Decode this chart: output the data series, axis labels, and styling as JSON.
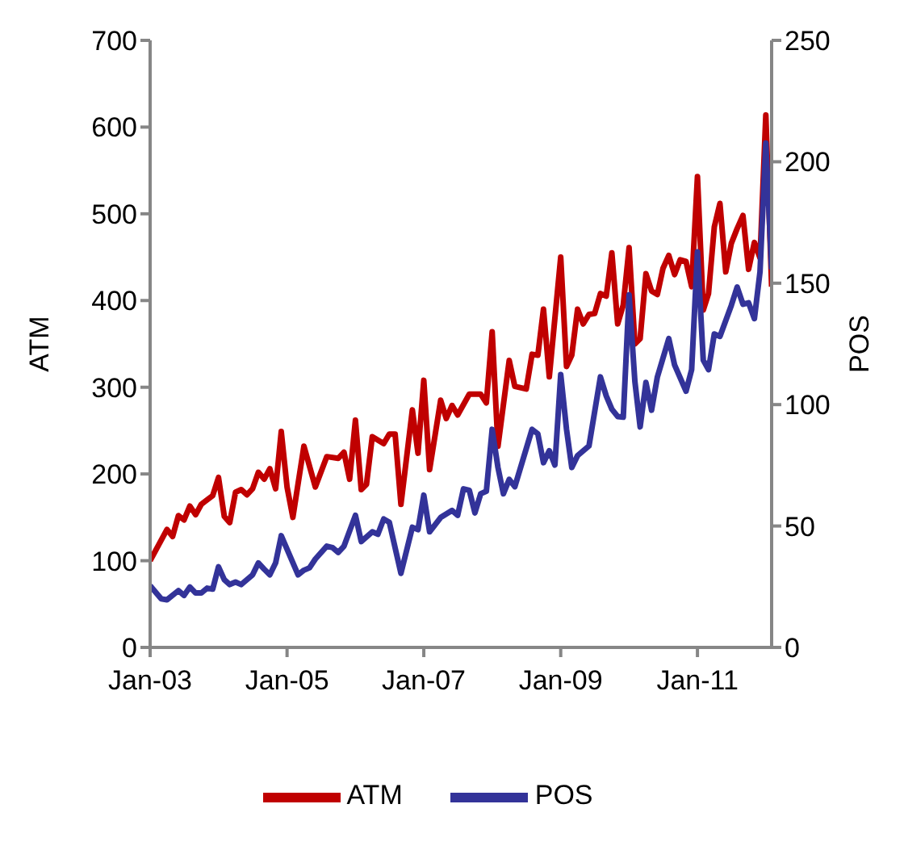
{
  "chart_data": {
    "type": "line",
    "ylabel": "ATM",
    "y2label": "POS",
    "legend": "bottom",
    "grid": false,
    "marker": "none",
    "line_style": "solid",
    "xlim": [
      "2003-01",
      "2012-02"
    ],
    "xticks": [
      {
        "value": "2003-01",
        "label": "Jan-03"
      },
      {
        "value": "2005-01",
        "label": "Jan-05"
      },
      {
        "value": "2007-01",
        "label": "Jan-07"
      },
      {
        "value": "2009-01",
        "label": "Jan-09"
      },
      {
        "value": "2011-01",
        "label": "Jan-11"
      }
    ],
    "ylim": [
      0,
      700
    ],
    "yticks": [
      0,
      100,
      200,
      300,
      400,
      500,
      600,
      700
    ],
    "y2lim": [
      0,
      250
    ],
    "y2ticks": [
      0,
      50,
      100,
      150,
      200,
      250
    ],
    "series": [
      {
        "name": "ATM",
        "color": "#c00000",
        "x": [
          "2003-01",
          "2003-04",
          "2003-05",
          "2003-06",
          "2003-07",
          "2003-08",
          "2003-09",
          "2003-10",
          "2003-12",
          "2004-01",
          "2004-02",
          "2004-03",
          "2004-04",
          "2004-05",
          "2004-06",
          "2004-07",
          "2004-08",
          "2004-09",
          "2004-10",
          "2004-11",
          "2004-12",
          "2005-01",
          "2005-02",
          "2005-04",
          "2005-06",
          "2005-08",
          "2005-10",
          "2005-11",
          "2005-12",
          "2006-01",
          "2006-02",
          "2006-03",
          "2006-04",
          "2006-06",
          "2006-07",
          "2006-08",
          "2006-09",
          "2006-11",
          "2006-12",
          "2007-01",
          "2007-02",
          "2007-04",
          "2007-05",
          "2007-06",
          "2007-07",
          "2007-09",
          "2007-11",
          "2007-12",
          "2008-01",
          "2008-02",
          "2008-04",
          "2008-05",
          "2008-07",
          "2008-08",
          "2008-09",
          "2008-10",
          "2008-11",
          "2009-01",
          "2009-02",
          "2009-03",
          "2009-04",
          "2009-05",
          "2009-06",
          "2009-07",
          "2009-08",
          "2009-09",
          "2009-10",
          "2009-11",
          "2009-12",
          "2010-01",
          "2010-02",
          "2010-03",
          "2010-04",
          "2010-05",
          "2010-06",
          "2010-07",
          "2010-08",
          "2010-09",
          "2010-10",
          "2010-11",
          "2010-12",
          "2011-01",
          "2011-02",
          "2011-03",
          "2011-04",
          "2011-05",
          "2011-06",
          "2011-07",
          "2011-08",
          "2011-09",
          "2011-10",
          "2011-11",
          "2011-12",
          "2012-01",
          "2012-02"
        ],
        "values": [
          100,
          136,
          128,
          152,
          147,
          163,
          153,
          165,
          175,
          196,
          151,
          144,
          179,
          182,
          176,
          183,
          202,
          194,
          206,
          183,
          249,
          185,
          150,
          232,
          185,
          220,
          218,
          225,
          194,
          262,
          182,
          188,
          243,
          235,
          246,
          246,
          165,
          274,
          224,
          308,
          205,
          285,
          264,
          279,
          268,
          292,
          292,
          282,
          364,
          232,
          331,
          301,
          298,
          338,
          337,
          390,
          312,
          450,
          324,
          337,
          390,
          373,
          384,
          385,
          408,
          405,
          455,
          373,
          395,
          461,
          350,
          356,
          431,
          411,
          407,
          437,
          452,
          430,
          447,
          445,
          416,
          543,
          389,
          408,
          485,
          512,
          433,
          466,
          483,
          498,
          436,
          467,
          449,
          614,
          416
        ]
      },
      {
        "name": "POS",
        "color": "#333399",
        "axis": "y2",
        "x": [
          "2003-01",
          "2003-03",
          "2003-04",
          "2003-06",
          "2003-07",
          "2003-08",
          "2003-09",
          "2003-10",
          "2003-11",
          "2003-12",
          "2004-01",
          "2004-02",
          "2004-03",
          "2004-04",
          "2004-05",
          "2004-07",
          "2004-08",
          "2004-09",
          "2004-10",
          "2004-11",
          "2004-12",
          "2005-03",
          "2005-04",
          "2005-05",
          "2005-06",
          "2005-08",
          "2005-09",
          "2005-10",
          "2005-11",
          "2006-01",
          "2006-02",
          "2006-04",
          "2006-05",
          "2006-06",
          "2006-07",
          "2006-09",
          "2006-11",
          "2006-12",
          "2007-01",
          "2007-02",
          "2007-04",
          "2007-06",
          "2007-07",
          "2007-08",
          "2007-09",
          "2007-10",
          "2007-11",
          "2007-12",
          "2008-01",
          "2008-02",
          "2008-03",
          "2008-04",
          "2008-05",
          "2008-08",
          "2008-09",
          "2008-10",
          "2008-11",
          "2008-12",
          "2009-01",
          "2009-02",
          "2009-03",
          "2009-04",
          "2009-06",
          "2009-08",
          "2009-09",
          "2009-10",
          "2009-11",
          "2009-12",
          "2010-01",
          "2010-02",
          "2010-03",
          "2010-04",
          "2010-05",
          "2010-06",
          "2010-08",
          "2010-09",
          "2010-11",
          "2010-12",
          "2011-01",
          "2011-02",
          "2011-03",
          "2011-04",
          "2011-05",
          "2011-07",
          "2011-08",
          "2011-09",
          "2011-10",
          "2011-11",
          "2011-12",
          "2012-01",
          "2012-02"
        ],
        "values": [
          25.4,
          20.0,
          19.6,
          23.4,
          21.4,
          24.9,
          22.4,
          22.4,
          24.4,
          24.0,
          33.2,
          27.9,
          25.9,
          26.9,
          25.9,
          29.9,
          34.8,
          32.2,
          29.9,
          34.8,
          46.0,
          29.9,
          31.8,
          32.8,
          36.4,
          41.7,
          41.1,
          39.1,
          41.7,
          54.4,
          43.6,
          47.6,
          46.6,
          52.9,
          51.5,
          30.5,
          49.5,
          48.5,
          62.7,
          47.6,
          53.5,
          56.4,
          54.4,
          65.3,
          64.7,
          55.4,
          63.3,
          64.3,
          89.8,
          74.1,
          63.3,
          69.2,
          66.2,
          89.8,
          87.9,
          76.1,
          81.0,
          75.1,
          112.4,
          89.8,
          74.1,
          79.0,
          83.0,
          111.4,
          103.6,
          98.1,
          95.1,
          94.8,
          145.2,
          109.5,
          90.8,
          109.1,
          97.7,
          111.4,
          127.2,
          116.3,
          105.5,
          114.4,
          162.9,
          118.3,
          114.4,
          129.1,
          128.1,
          140.9,
          148.4,
          141.3,
          141.9,
          135.4,
          154.7,
          207.7,
          155.7
        ]
      }
    ]
  }
}
